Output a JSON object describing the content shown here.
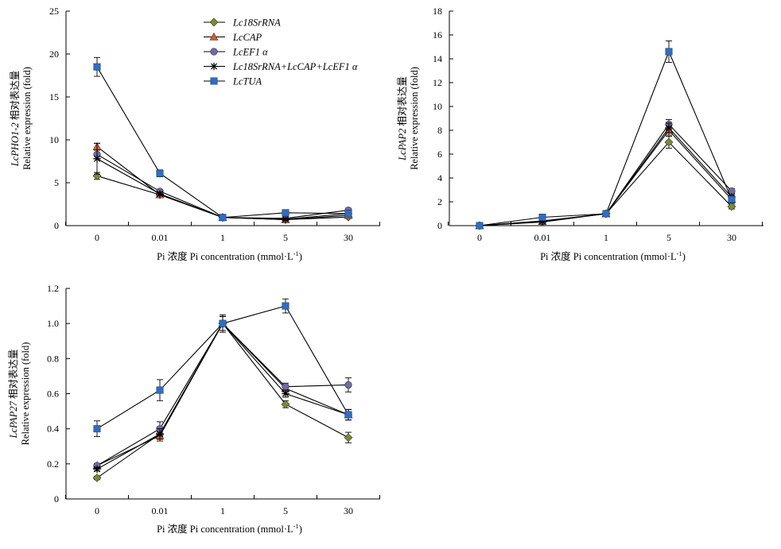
{
  "legend": [
    {
      "name": "Lc18SrRNA",
      "marker": "diamond",
      "color": "#7a8c2e"
    },
    {
      "name": "LcCAP",
      "marker": "triangle",
      "color": "#e2572a"
    },
    {
      "name": "LcEF1 α",
      "marker": "circle",
      "color": "#6f6aa8"
    },
    {
      "name": "Lc18SrRNA+LcCAP+LcEF1 α",
      "marker": "star",
      "color": "#000000"
    },
    {
      "name": "LcTUA",
      "marker": "square",
      "color": "#2f6ec2"
    }
  ],
  "chart_data": [
    {
      "type": "line",
      "categories": [
        "0",
        "0.01",
        "1",
        "5",
        "30"
      ],
      "ylabel_gene": "LcPHO1-2",
      "ylabel_cn": " 相对表达量",
      "ylabel": "Relative expression (fold)",
      "xlabel": "Pi 浓度 Pi concentration (mmol·L",
      "xlabel_sup": "-1",
      "xlabel_end": ")",
      "ylim": [
        0,
        25
      ],
      "yticks": [
        0,
        5,
        10,
        15,
        20,
        25
      ],
      "series": [
        {
          "name": "Lc18SrRNA",
          "values": [
            5.8,
            3.6,
            0.95,
            0.7,
            1.0
          ],
          "errors": [
            0.4,
            0.2,
            0.1,
            0.1,
            0.1
          ]
        },
        {
          "name": "LcCAP",
          "values": [
            9.2,
            3.6,
            0.95,
            0.7,
            1.2
          ],
          "errors": [
            0.4,
            0.2,
            0.1,
            0.1,
            0.1
          ]
        },
        {
          "name": "LcEF1 α",
          "values": [
            8.3,
            4.0,
            0.95,
            0.85,
            1.8
          ],
          "errors": [
            0.5,
            0.2,
            0.1,
            0.1,
            0.2
          ]
        },
        {
          "name": "Lc18SrRNA+LcCAP+LcEF1 α",
          "values": [
            7.8,
            3.7,
            0.95,
            0.75,
            1.4
          ],
          "errors": [
            1.8,
            0.2,
            0.1,
            0.1,
            0.2
          ]
        },
        {
          "name": "LcTUA",
          "values": [
            18.5,
            6.1,
            0.95,
            1.5,
            1.4
          ],
          "errors": [
            1.1,
            0.4,
            0.1,
            0.1,
            0.1
          ]
        }
      ]
    },
    {
      "type": "line",
      "categories": [
        "0",
        "0.01",
        "1",
        "5",
        "30"
      ],
      "ylabel_gene": "LcPAP2",
      "ylabel_cn": " 相对表达量",
      "ylabel": "Relative expression (fold)",
      "xlabel": "Pi 浓度 Pi concentration (mmol·L",
      "xlabel_sup": "-1",
      "xlabel_end": ")",
      "ylim": [
        0,
        18
      ],
      "yticks": [
        0,
        2,
        4,
        6,
        8,
        10,
        12,
        14,
        16,
        18
      ],
      "series": [
        {
          "name": "Lc18SrRNA",
          "values": [
            0.0,
            0.3,
            1.0,
            7.0,
            1.6
          ],
          "errors": [
            0.05,
            0.05,
            0.1,
            0.5,
            0.2
          ]
        },
        {
          "name": "LcCAP",
          "values": [
            0.0,
            0.35,
            1.0,
            8.0,
            2.2
          ],
          "errors": [
            0.05,
            0.05,
            0.1,
            0.4,
            0.2
          ]
        },
        {
          "name": "LcEF1 α",
          "values": [
            0.0,
            0.4,
            1.0,
            8.5,
            2.9
          ],
          "errors": [
            0.05,
            0.05,
            0.1,
            0.4,
            0.2
          ]
        },
        {
          "name": "Lc18SrRNA+LcCAP+LcEF1 α",
          "values": [
            0.0,
            0.35,
            1.0,
            8.2,
            2.4
          ],
          "errors": [
            0.05,
            0.05,
            0.1,
            0.4,
            0.2
          ]
        },
        {
          "name": "LcTUA",
          "values": [
            0.0,
            0.7,
            1.0,
            14.6,
            2.2
          ],
          "errors": [
            0.05,
            0.1,
            0.1,
            0.9,
            0.3
          ]
        }
      ]
    },
    {
      "type": "line",
      "categories": [
        "0",
        "0.01",
        "1",
        "5",
        "30"
      ],
      "ylabel_gene": "LcPAP27",
      "ylabel_cn": " 相对表达量",
      "ylabel": "Relative expression (fold)",
      "xlabel": "Pi 浓度 Pi concentration (mmol·L",
      "xlabel_sup": "-1",
      "xlabel_end": ")",
      "ylim": [
        0,
        1.2
      ],
      "yticks": [
        "0",
        "0.2",
        "0.4",
        "0.6",
        "0.8",
        "1.0",
        "1.2"
      ],
      "series": [
        {
          "name": "Lc18SrRNA",
          "values": [
            0.12,
            0.37,
            1.0,
            0.54,
            0.35
          ],
          "errors": [
            0.01,
            0.03,
            0.04,
            0.02,
            0.03
          ]
        },
        {
          "name": "LcCAP",
          "values": [
            0.19,
            0.36,
            1.0,
            0.63,
            0.48
          ],
          "errors": [
            0.01,
            0.03,
            0.04,
            0.02,
            0.03
          ]
        },
        {
          "name": "LcEF1 α",
          "values": [
            0.19,
            0.4,
            1.0,
            0.64,
            0.65
          ],
          "errors": [
            0.01,
            0.04,
            0.04,
            0.02,
            0.04
          ]
        },
        {
          "name": "Lc18SrRNA+LcCAP+LcEF1 α",
          "values": [
            0.17,
            0.37,
            1.0,
            0.6,
            0.48
          ],
          "errors": [
            0.01,
            0.03,
            0.04,
            0.02,
            0.03
          ]
        },
        {
          "name": "LcTUA",
          "values": [
            0.4,
            0.62,
            1.0,
            1.1,
            0.48
          ],
          "errors": [
            0.045,
            0.06,
            0.05,
            0.04,
            0.03
          ]
        }
      ]
    }
  ]
}
